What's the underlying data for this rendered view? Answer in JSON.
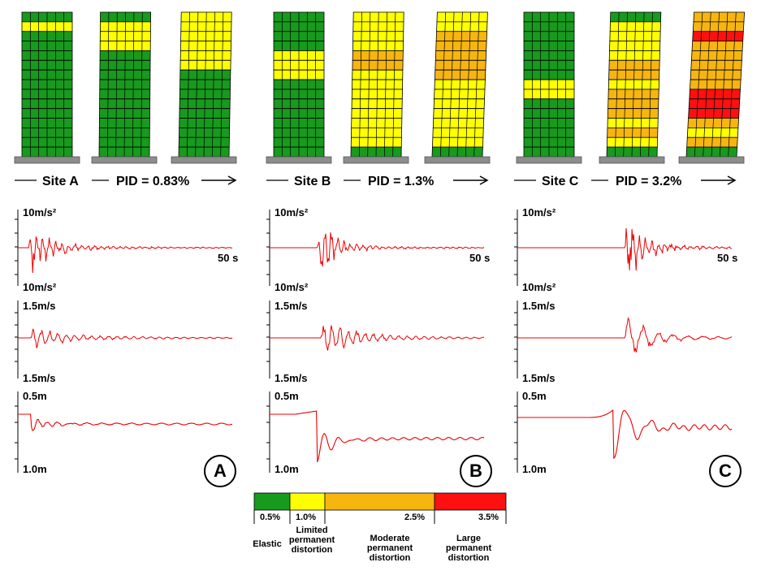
{
  "sites": [
    {
      "id": "A",
      "site_label": "Site A",
      "pid_label": "PID = 0.83%",
      "panel_letter": "A",
      "accel_top_label": "10m/s²",
      "accel_bottom_label": "10m/s²",
      "duration_label": "50 s",
      "vel_top_label": "1.5m/s",
      "vel_bottom_label": "1.5m/s",
      "disp_top_label": "0.5m",
      "disp_bottom_label": "1.0m",
      "buildings": [
        [
          "G",
          "Y",
          "G",
          "G",
          "G",
          "G",
          "G",
          "G",
          "G",
          "G",
          "G",
          "G",
          "G",
          "G",
          "G"
        ],
        [
          "G",
          "Y",
          "Y",
          "Y",
          "G",
          "G",
          "G",
          "G",
          "G",
          "G",
          "G",
          "G",
          "G",
          "G",
          "G"
        ],
        [
          "Y",
          "Y",
          "Y",
          "Y",
          "Y",
          "Y",
          "G",
          "G",
          "G",
          "G",
          "G",
          "G",
          "G",
          "G",
          "G"
        ]
      ]
    },
    {
      "id": "B",
      "site_label": "Site B",
      "pid_label": "PID = 1.3%",
      "panel_letter": "B",
      "accel_top_label": "10m/s²",
      "accel_bottom_label": "10m/s²",
      "duration_label": "50 s",
      "vel_top_label": "1.5m/s",
      "vel_bottom_label": "1.5m/s",
      "disp_top_label": "0.5m",
      "disp_bottom_label": "1.0m",
      "buildings": [
        [
          "G",
          "G",
          "G",
          "G",
          "Y",
          "Y",
          "Y",
          "G",
          "G",
          "G",
          "G",
          "G",
          "G",
          "G",
          "G"
        ],
        [
          "Y",
          "Y",
          "Y",
          "Y",
          "O",
          "O",
          "Y",
          "Y",
          "Y",
          "Y",
          "Y",
          "Y",
          "Y",
          "Y",
          "G"
        ],
        [
          "Y",
          "Y",
          "O",
          "O",
          "O",
          "O",
          "O",
          "Y",
          "Y",
          "Y",
          "Y",
          "Y",
          "Y",
          "Y",
          "G"
        ]
      ]
    },
    {
      "id": "C",
      "site_label": "Site C",
      "pid_label": "PID = 3.2%",
      "panel_letter": "C",
      "accel_top_label": "10m/s²",
      "accel_bottom_label": "10m/s²",
      "duration_label": "50 s",
      "vel_top_label": "1.5m/s",
      "vel_bottom_label": "1.5m/s",
      "disp_top_label": "0.5m",
      "disp_bottom_label": "1.0m",
      "buildings": [
        [
          "G",
          "G",
          "G",
          "G",
          "G",
          "G",
          "G",
          "Y",
          "Y",
          "G",
          "G",
          "G",
          "G",
          "G",
          "G"
        ],
        [
          "G",
          "Y",
          "Y",
          "Y",
          "Y",
          "O",
          "O",
          "Y",
          "O",
          "O",
          "O",
          "Y",
          "O",
          "Y",
          "G"
        ],
        [
          "O",
          "O",
          "R",
          "O",
          "O",
          "O",
          "O",
          "O",
          "R",
          "R",
          "R",
          "O",
          "Y",
          "O",
          "G"
        ]
      ]
    }
  ],
  "legend": {
    "colors": {
      "G": "#179a1d",
      "Y": "#ffff00",
      "O": "#f7b50f",
      "R": "#ff1010"
    },
    "ticks": [
      "0.5%",
      "1.0%",
      "2.5%",
      "3.5%"
    ],
    "categories": [
      {
        "lines": [
          "Elastic"
        ]
      },
      {
        "lines": [
          "Limited",
          "permanent",
          "distortion"
        ]
      },
      {
        "lines": [
          "Moderate",
          "permanent",
          "distortion"
        ]
      },
      {
        "lines": [
          "Large",
          "permanent",
          "distortion"
        ]
      }
    ]
  },
  "trace_color": "#ee0000"
}
